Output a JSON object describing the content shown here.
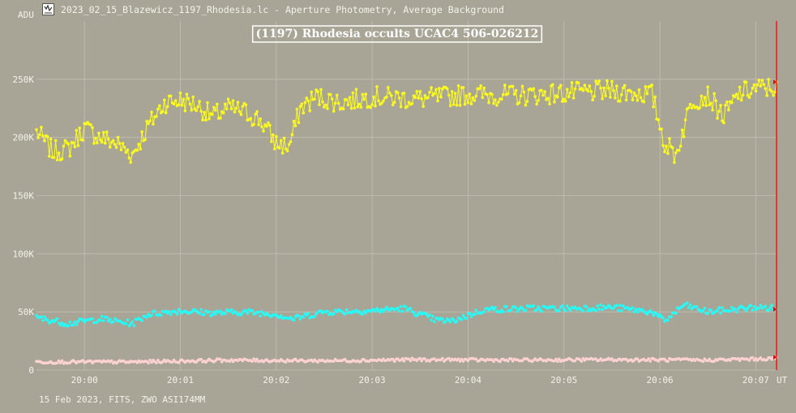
{
  "window": {
    "title": "2023_02_15_Blazewicz_1197_Rhodesia.lc - Aperture Photometry, Average Background",
    "icon": "lightcurve-app-icon"
  },
  "footer": {
    "text": "15 Feb 2023, FITS, ZWO ASI174MM"
  },
  "chart_data": {
    "type": "scatter",
    "title": "(1197) Rhodesia occults UCAC4 506-026212",
    "ylabel": "ADU",
    "xlabel": "UT",
    "ylim": [
      0,
      300000
    ],
    "xlim": [
      "19:59:30",
      "20:07:13"
    ],
    "y_ticks": [
      "0",
      "50K",
      "100K",
      "150K",
      "200K",
      "250K"
    ],
    "y_tick_values": [
      0,
      50000,
      100000,
      150000,
      200000,
      250000
    ],
    "x_ticks": [
      "20:00",
      "20:01",
      "20:02",
      "20:03",
      "20:04",
      "20:05",
      "20:06",
      "20:07"
    ],
    "grid": true,
    "cursor_line": "20:07:13",
    "colors": {
      "target": "#ffff1a",
      "comparison": "#22ffff",
      "background": "#ffd2d0",
      "cursor": "#e00000"
    },
    "series": [
      {
        "key": "target",
        "color": "#ffff1a",
        "x": [
          "19:59:30",
          "19:59:40",
          "19:59:50",
          "20:00:00",
          "20:00:10",
          "20:00:20",
          "20:00:30",
          "20:00:40",
          "20:00:50",
          "20:01:00",
          "20:01:10",
          "20:01:20",
          "20:01:30",
          "20:01:40",
          "20:01:50",
          "20:02:00",
          "20:02:08",
          "20:02:15",
          "20:02:25",
          "20:02:40",
          "20:03:00",
          "20:03:30",
          "20:04:00",
          "20:04:30",
          "20:05:00",
          "20:05:30",
          "20:05:55",
          "20:06:03",
          "20:06:10",
          "20:06:20",
          "20:06:30",
          "20:06:40",
          "20:06:50",
          "20:07:00",
          "20:07:13"
        ],
        "values": [
          205000,
          188000,
          190000,
          208000,
          200000,
          195000,
          185000,
          210000,
          230000,
          232000,
          228000,
          218000,
          225000,
          222000,
          215000,
          195000,
          192000,
          225000,
          235000,
          230000,
          235000,
          233000,
          237000,
          236000,
          238000,
          240000,
          237000,
          195000,
          185000,
          232000,
          236000,
          218000,
          238000,
          242000,
          243000
        ]
      },
      {
        "key": "comparison",
        "color": "#22ffff",
        "x": [
          "19:59:30",
          "19:59:50",
          "20:00:10",
          "20:00:30",
          "20:00:40",
          "20:01:00",
          "20:01:20",
          "20:01:40",
          "20:02:00",
          "20:02:10",
          "20:02:30",
          "20:03:00",
          "20:03:20",
          "20:03:40",
          "20:03:50",
          "20:04:10",
          "20:04:40",
          "20:05:00",
          "20:05:30",
          "20:05:55",
          "20:06:03",
          "20:06:15",
          "20:06:30",
          "20:06:45",
          "20:07:00",
          "20:07:13"
        ],
        "values": [
          45000,
          40000,
          44000,
          40000,
          48000,
          51000,
          49000,
          50000,
          48000,
          44000,
          50000,
          51000,
          53000,
          43000,
          42000,
          52000,
          53000,
          53000,
          54000,
          50000,
          42000,
          56000,
          50000,
          52000,
          54000,
          53000
        ]
      },
      {
        "key": "background",
        "color": "#ffd2d0",
        "x": [
          "19:59:30",
          "20:00:30",
          "20:01:30",
          "20:02:30",
          "20:03:30",
          "20:04:30",
          "20:05:30",
          "20:06:30",
          "20:07:13"
        ],
        "values": [
          7000,
          7000,
          8500,
          8000,
          9000,
          8500,
          9000,
          8500,
          10000
        ]
      }
    ]
  }
}
